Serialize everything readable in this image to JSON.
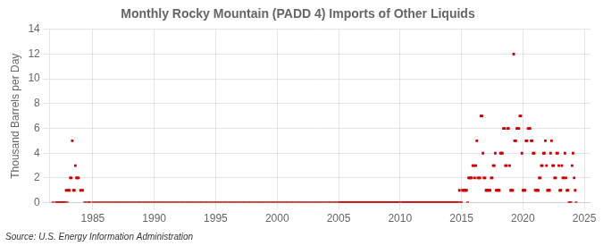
{
  "chart_data": {
    "type": "scatter",
    "title": "Monthly Rocky Mountain (PADD 4) Imports of Other Liquids",
    "y_label": "Thousand Barrels per Day",
    "annotation": "Source: U.S. Energy Information Administration",
    "color": "#cc0000",
    "marker": "square",
    "grid": true,
    "xlim": [
      1981.5,
      2025.5
    ],
    "xticks": [
      1985,
      1990,
      1995,
      2000,
      2005,
      2010,
      2015,
      2020,
      2025
    ],
    "ylim": [
      0,
      14
    ],
    "yticks": [
      0,
      2,
      4,
      6,
      8,
      10,
      12,
      14
    ],
    "x": [
      1981.75,
      1982.0,
      1982.08,
      1982.17,
      1982.25,
      1982.33,
      1982.42,
      1982.5,
      1982.58,
      1982.67,
      1982.75,
      1982.83,
      1982.92,
      1983.0,
      1983.08,
      1983.17,
      1983.25,
      1983.33,
      1983.42,
      1983.5,
      1983.58,
      1983.67,
      1983.75,
      1983.83,
      1984.0,
      1984.17,
      1984.33,
      1984.5,
      1984.67,
      1984.75,
      1985.0,
      1985.17,
      1985.33,
      1985.5,
      1985.67,
      1985.83,
      1986.0,
      1986.17,
      1986.33,
      1986.5,
      1986.67,
      1986.83,
      1987.0,
      1987.17,
      1987.33,
      1987.5,
      1987.67,
      1987.83,
      1988.0,
      1988.17,
      1988.33,
      1988.5,
      1988.67,
      1988.83,
      1989.0,
      1989.17,
      1989.33,
      1989.5,
      1989.67,
      1989.83,
      1990.0,
      1990.17,
      1990.33,
      1990.5,
      1990.67,
      1990.83,
      1991.0,
      1991.17,
      1991.33,
      1991.5,
      1991.67,
      1991.83,
      1992.0,
      1992.17,
      1992.33,
      1992.5,
      1992.67,
      1992.83,
      1993.0,
      1993.17,
      1993.33,
      1993.5,
      1993.67,
      1993.83,
      1994.0,
      1994.17,
      1994.33,
      1994.5,
      1994.67,
      1994.83,
      1995.0,
      1995.17,
      1995.33,
      1995.5,
      1995.67,
      1995.83,
      1996.0,
      1996.17,
      1996.33,
      1996.5,
      1996.67,
      1996.83,
      1997.0,
      1997.17,
      1997.33,
      1997.5,
      1997.67,
      1997.83,
      1998.0,
      1998.17,
      1998.33,
      1998.5,
      1998.67,
      1998.83,
      1999.0,
      1999.17,
      1999.33,
      1999.5,
      1999.67,
      1999.83,
      2000.0,
      2000.17,
      2000.33,
      2000.5,
      2000.67,
      2000.83,
      2001.0,
      2001.17,
      2001.33,
      2001.5,
      2001.67,
      2001.83,
      2002.0,
      2002.17,
      2002.33,
      2002.5,
      2002.67,
      2002.83,
      2003.0,
      2003.17,
      2003.33,
      2003.5,
      2003.67,
      2003.83,
      2004.0,
      2004.17,
      2004.33,
      2004.5,
      2004.67,
      2004.83,
      2005.0,
      2005.08,
      2005.17,
      2005.25,
      2005.33,
      2005.42,
      2005.5,
      2005.58,
      2005.67,
      2005.75,
      2005.83,
      2005.92,
      2006.0,
      2006.08,
      2006.17,
      2006.25,
      2006.33,
      2006.42,
      2006.5,
      2006.58,
      2006.67,
      2006.75,
      2006.83,
      2006.92,
      2007.0,
      2007.08,
      2007.17,
      2007.25,
      2007.33,
      2007.42,
      2007.5,
      2007.58,
      2007.67,
      2007.75,
      2007.83,
      2007.92,
      2008.0,
      2008.08,
      2008.17,
      2008.25,
      2008.33,
      2008.42,
      2008.5,
      2008.58,
      2008.67,
      2008.75,
      2008.83,
      2008.92,
      2009.0,
      2009.08,
      2009.17,
      2009.25,
      2009.33,
      2009.42,
      2009.5,
      2009.58,
      2009.67,
      2009.75,
      2009.83,
      2009.92,
      2010.08,
      2010.17,
      2010.25,
      2010.33,
      2010.42,
      2010.5,
      2010.58,
      2010.67,
      2010.75,
      2010.83,
      2010.92,
      2011.0,
      2011.08,
      2011.17,
      2011.25,
      2011.33,
      2011.42,
      2011.5,
      2011.58,
      2011.67,
      2011.75,
      2011.83,
      2011.92,
      2012.0,
      2012.08,
      2012.17,
      2012.25,
      2012.33,
      2012.42,
      2012.5,
      2012.58,
      2012.67,
      2012.75,
      2012.83,
      2012.92,
      2013.0,
      2013.08,
      2013.17,
      2013.25,
      2013.33,
      2013.42,
      2013.5,
      2013.58,
      2013.67,
      2013.75,
      2013.83,
      2013.92,
      2014.0,
      2014.08,
      2014.17,
      2014.25,
      2014.33,
      2014.42,
      2014.5,
      2014.58,
      2014.67,
      2014.75,
      2014.83,
      2014.92,
      2015.0,
      2015.08,
      2015.17,
      2015.25,
      2015.33,
      2015.42,
      2015.5,
      2015.58,
      2015.67,
      2015.75,
      2015.83,
      2015.92,
      2016.0,
      2016.08,
      2016.17,
      2016.25,
      2016.33,
      2016.42,
      2016.5,
      2016.58,
      2016.67,
      2016.75,
      2016.83,
      2016.92,
      2017.0,
      2017.08,
      2017.17,
      2017.25,
      2017.33,
      2017.42,
      2017.5,
      2017.58,
      2017.67,
      2017.75,
      2017.83,
      2017.92,
      2018.0,
      2018.08,
      2018.17,
      2018.25,
      2018.33,
      2018.42,
      2018.5,
      2018.58,
      2018.67,
      2018.75,
      2018.83,
      2018.92,
      2019.0,
      2019.08,
      2019.17,
      2019.25,
      2019.33,
      2019.42,
      2019.5,
      2019.58,
      2019.67,
      2019.75,
      2019.83,
      2019.92,
      2020.0,
      2020.08,
      2020.17,
      2020.25,
      2020.33,
      2020.42,
      2020.5,
      2020.58,
      2020.67,
      2020.75,
      2020.83,
      2020.92,
      2021.0,
      2021.08,
      2021.17,
      2021.25,
      2021.33,
      2021.42,
      2021.5,
      2021.58,
      2021.67,
      2021.75,
      2021.83,
      2021.92,
      2022.0,
      2022.08,
      2022.17,
      2022.25,
      2022.33,
      2022.42,
      2022.5,
      2022.58,
      2022.67,
      2022.75,
      2022.83,
      2022.92,
      2023.0,
      2023.08,
      2023.17,
      2023.25,
      2023.33,
      2023.42,
      2023.5,
      2023.58,
      2023.67,
      2023.75,
      2023.83,
      2023.92,
      2024.0,
      2024.08,
      2024.17,
      2024.25,
      2024.33
    ],
    "values": [
      0,
      0,
      0,
      0,
      0,
      0,
      0,
      0,
      0,
      0,
      0,
      1,
      0,
      1,
      1,
      2,
      2,
      5,
      1,
      1,
      3,
      2,
      2,
      2,
      1,
      1,
      0,
      0,
      0,
      0,
      0,
      0,
      0,
      0,
      0,
      0,
      0,
      0,
      0,
      0,
      0,
      0,
      0,
      0,
      0,
      0,
      0,
      0,
      0,
      0,
      0,
      0,
      0,
      0,
      0,
      0,
      0,
      0,
      0,
      0,
      0,
      0,
      0,
      0,
      0,
      0,
      0,
      0,
      0,
      0,
      0,
      0,
      0,
      0,
      0,
      0,
      0,
      0,
      0,
      0,
      0,
      0,
      0,
      0,
      0,
      0,
      0,
      0,
      0,
      0,
      0,
      0,
      0,
      0,
      0,
      0,
      0,
      0,
      0,
      0,
      0,
      0,
      0,
      0,
      0,
      0,
      0,
      0,
      0,
      0,
      0,
      0,
      0,
      0,
      0,
      0,
      0,
      0,
      0,
      0,
      0,
      0,
      0,
      0,
      0,
      0,
      0,
      0,
      0,
      0,
      0,
      0,
      0,
      0,
      0,
      0,
      0,
      0,
      0,
      0,
      0,
      0,
      0,
      0,
      0,
      0,
      0,
      0,
      0,
      0,
      0,
      0,
      0,
      0,
      0,
      0,
      0,
      0,
      0,
      0,
      0,
      0,
      0,
      0,
      0,
      0,
      0,
      0,
      0,
      0,
      0,
      0,
      0,
      0,
      0,
      0,
      0,
      0,
      0,
      0,
      0,
      0,
      0,
      0,
      0,
      0,
      0,
      0,
      0,
      0,
      0,
      0,
      0,
      0,
      0,
      0,
      0,
      0,
      0,
      0,
      0,
      0,
      0,
      0,
      0,
      0,
      0,
      0,
      0,
      0,
      0,
      0,
      0,
      0,
      0,
      0,
      0,
      0,
      0,
      0,
      0,
      0,
      0,
      0,
      0,
      0,
      0,
      0,
      0,
      0,
      0,
      0,
      0,
      0,
      0,
      0,
      0,
      0,
      0,
      0,
      0,
      0,
      0,
      0,
      0,
      0,
      0,
      0,
      0,
      0,
      0,
      0,
      0,
      0,
      0,
      0,
      0,
      0,
      0,
      0,
      0,
      0,
      0,
      0,
      0,
      0,
      0,
      1,
      0,
      0,
      1,
      1,
      1,
      1,
      1,
      0,
      2,
      2,
      2,
      2,
      3,
      3,
      2,
      3,
      5,
      2,
      2,
      2,
      7,
      7,
      4,
      2,
      2,
      1,
      1,
      1,
      1,
      1,
      2,
      2,
      3,
      3,
      4,
      1,
      1,
      1,
      1,
      4,
      4,
      4,
      6,
      6,
      3,
      3,
      6,
      6,
      3,
      1,
      1,
      1,
      12,
      5,
      5,
      6,
      6,
      6,
      7,
      7,
      4,
      1,
      1,
      1,
      5,
      5,
      6,
      6,
      6,
      5,
      5,
      4,
      4,
      1,
      1,
      1,
      1,
      2,
      2,
      3,
      3,
      4,
      4,
      5,
      3,
      1,
      1,
      1,
      4,
      5,
      3,
      3,
      2,
      2,
      4,
      4,
      3,
      1,
      1,
      3,
      2,
      2,
      4,
      2,
      1,
      1,
      0,
      0,
      0,
      3,
      4,
      2,
      1,
      0
    ]
  }
}
